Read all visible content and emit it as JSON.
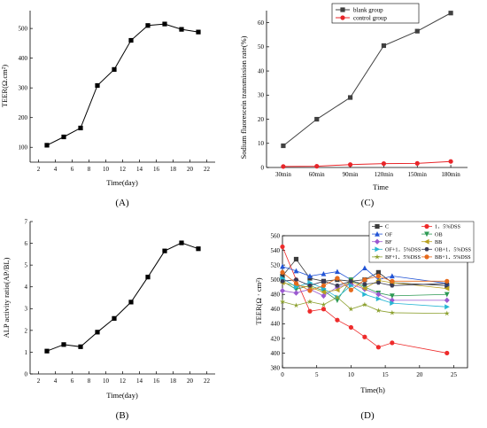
{
  "chart_data": [
    {
      "panel": "(A)",
      "type": "line",
      "xlabel": "Time(day)",
      "ylabel": "TEER(Ω.cm²)",
      "xlim": [
        1,
        23
      ],
      "ylim": [
        50,
        560
      ],
      "xticks": [
        2,
        4,
        6,
        8,
        10,
        12,
        14,
        16,
        18,
        20,
        22
      ],
      "yticks": [
        100,
        200,
        300,
        400,
        500
      ],
      "series": [
        {
          "marker": "square",
          "color": "#000000",
          "x": [
            3,
            5,
            7,
            9,
            11,
            13,
            15,
            17,
            19,
            21
          ],
          "y": [
            107,
            135,
            165,
            308,
            362,
            460,
            510,
            515,
            497,
            488
          ]
        }
      ]
    },
    {
      "panel": "(B)",
      "type": "line",
      "xlabel": "Time(day)",
      "ylabel": "ALP activity ratio(AP/BL)",
      "xlim": [
        1,
        23
      ],
      "ylim": [
        0,
        7
      ],
      "xticks": [
        2,
        4,
        6,
        8,
        10,
        12,
        14,
        16,
        18,
        20,
        22
      ],
      "yticks": [
        0,
        1,
        2,
        3,
        4,
        5,
        6,
        7
      ],
      "series": [
        {
          "marker": "square",
          "color": "#000000",
          "x": [
            3,
            5,
            7,
            9,
            11,
            13,
            15,
            17,
            19,
            21
          ],
          "y": [
            1.05,
            1.35,
            1.25,
            1.92,
            2.55,
            3.3,
            4.45,
            5.65,
            6.02,
            5.75
          ]
        }
      ]
    },
    {
      "panel": "(C)",
      "type": "line",
      "xlabel": "Time",
      "ylabel": "Sodium fluorescein transmission rate(%)",
      "categories": [
        "30min",
        "60min",
        "90min",
        "120min",
        "150min",
        "180min"
      ],
      "ylim": [
        0,
        65
      ],
      "yticks": [
        0,
        10,
        20,
        30,
        40,
        50,
        60
      ],
      "legend": "top-right",
      "series": [
        {
          "name": "blank group",
          "marker": "square",
          "color": "#404040",
          "values": [
            9,
            20,
            29,
            50.5,
            56.5,
            64
          ]
        },
        {
          "name": "control group",
          "marker": "circle",
          "color": "#e8262a",
          "values": [
            0.4,
            0.5,
            1.2,
            1.6,
            1.7,
            2.5
          ]
        }
      ]
    },
    {
      "panel": "(D)",
      "type": "line",
      "xlabel": "Time(h)",
      "ylabel": "TEER(Ω · cm²)",
      "xlim": [
        0,
        27
      ],
      "ylim": [
        380,
        560
      ],
      "xticks": [
        0,
        5,
        10,
        15,
        20,
        25
      ],
      "yticks": [
        380,
        400,
        420,
        440,
        460,
        480,
        500,
        520,
        540,
        560
      ],
      "legend": "top-right",
      "x": [
        0,
        2,
        4,
        6,
        8,
        10,
        12,
        14,
        16,
        24
      ],
      "series": [
        {
          "name": "C",
          "marker": "square",
          "color": "#3b3b3b",
          "values": [
            505,
            528,
            502,
            498,
            500,
            498,
            500,
            510,
            496,
            492
          ]
        },
        {
          "name": "1．5%DSS",
          "marker": "circle",
          "color": "#ee2b2b",
          "values": [
            545,
            500,
            457,
            460,
            445,
            435,
            422,
            408,
            414,
            400
          ]
        },
        {
          "name": "OF",
          "marker": "triangle-up",
          "color": "#2355d6",
          "values": [
            518,
            512,
            505,
            508,
            511,
            500,
            516,
            500,
            505,
            495
          ]
        },
        {
          "name": "OB",
          "marker": "triangle-down",
          "color": "#2e9a54",
          "values": [
            498,
            487,
            492,
            485,
            472,
            500,
            490,
            482,
            478,
            480
          ]
        },
        {
          "name": "BF",
          "marker": "diamond",
          "color": "#9b59d0",
          "values": [
            485,
            482,
            487,
            478,
            490,
            494,
            487,
            480,
            472,
            472
          ]
        },
        {
          "name": "BB",
          "marker": "triangle-left",
          "color": "#b8a020",
          "values": [
            496,
            492,
            490,
            483,
            486,
            498,
            488,
            499,
            496,
            488
          ]
        },
        {
          "name": "OF+1．5%DSS",
          "marker": "triangle-right",
          "color": "#25b6d3",
          "values": [
            502,
            490,
            496,
            488,
            476,
            492,
            480,
            474,
            468,
            463
          ]
        },
        {
          "name": "OB+1．5%DSS",
          "marker": "hexagon",
          "color": "#3a3a55",
          "values": [
            498,
            500,
            492,
            498,
            492,
            498,
            494,
            496,
            492,
            495
          ]
        },
        {
          "name": "BF+1．5%DSS",
          "marker": "star",
          "color": "#8da131",
          "values": [
            470,
            465,
            470,
            466,
            476,
            460,
            466,
            458,
            455,
            454
          ]
        },
        {
          "name": "BB+1．5%DSS",
          "marker": "circle",
          "color": "#e66a1c",
          "values": [
            510,
            495,
            485,
            492,
            502,
            486,
            500,
            505,
            498,
            498
          ]
        }
      ]
    }
  ]
}
